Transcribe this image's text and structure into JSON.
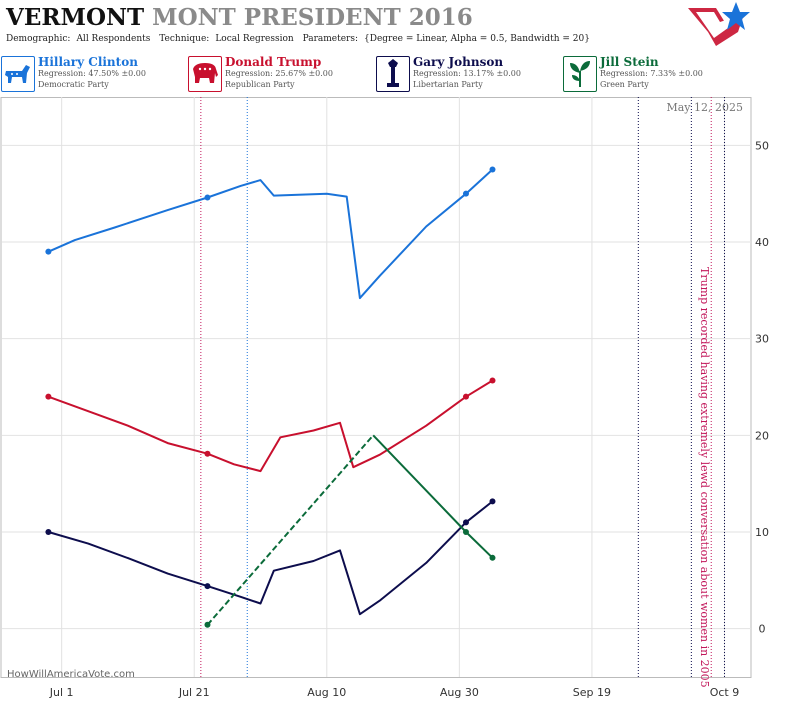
{
  "header": {
    "title_state": "VERMONT",
    "title_rest": "MONT PRESIDENT 2016",
    "demographic_label": "Demographic:",
    "demographic_value": "All Respondents",
    "technique_label": "Technique:",
    "technique_value": "Local Regression",
    "parameters_label": "Parameters:",
    "parameters_value": "{Degree = Linear, Alpha = 0.5, Bandwidth = 20}"
  },
  "candidates": [
    {
      "name": "Hillary Clinton",
      "regression": "Regression: 47.50% ±0.00",
      "party": "Democratic Party",
      "color": "#1a73d9",
      "icon": "donkey-icon"
    },
    {
      "name": "Donald Trump",
      "regression": "Regression: 25.67% ±0.00",
      "party": "Republican Party",
      "color": "#c8102e",
      "icon": "elephant-icon"
    },
    {
      "name": "Gary Johnson",
      "regression": "Regression: 13.17% ±0.00",
      "party": "Libertarian Party",
      "color": "#0d0d4d",
      "icon": "torch-icon"
    },
    {
      "name": "Jill Stein",
      "regression": "Regression: 7.33% ±0.00",
      "party": "Green Party",
      "color": "#0b6b3a",
      "icon": "leaf-icon"
    }
  ],
  "chart": {
    "date_label": "May 12, 2025",
    "watermark": "HowWillAmericaVote.com",
    "annotation": "Trump recorded having extremely lewd conversation about women in 2005"
  },
  "chart_data": {
    "type": "line",
    "x_ticks": [
      "Jul 1",
      "Jul 21",
      "Aug 10",
      "Aug 30",
      "Sep 19",
      "Oct 9"
    ],
    "y_ticks": [
      0,
      10,
      20,
      30,
      40,
      50
    ],
    "ylim": [
      -5,
      55
    ],
    "xlim": [
      "2016-06-22",
      "2016-10-13"
    ],
    "grid": true,
    "series": [
      {
        "name": "Hillary Clinton",
        "color": "#1a73d9",
        "dashed": false,
        "points": [
          [
            "2016-06-29",
            39.0
          ],
          [
            "2016-07-03",
            40.2
          ],
          [
            "2016-07-09",
            41.5
          ],
          [
            "2016-07-17",
            43.3
          ],
          [
            "2016-07-23",
            44.6
          ],
          [
            "2016-07-28",
            45.8
          ],
          [
            "2016-07-31",
            46.4
          ],
          [
            "2016-08-02",
            44.8
          ],
          [
            "2016-08-10",
            45.0
          ],
          [
            "2016-08-13",
            44.7
          ],
          [
            "2016-08-15",
            34.2
          ],
          [
            "2016-08-18",
            36.5
          ],
          [
            "2016-08-25",
            41.6
          ],
          [
            "2016-08-31",
            45.0
          ],
          [
            "2016-09-04",
            47.5
          ]
        ],
        "markers": [
          [
            "2016-06-29",
            39.0
          ],
          [
            "2016-07-23",
            44.6
          ],
          [
            "2016-08-31",
            45.0
          ],
          [
            "2016-09-04",
            47.5
          ]
        ]
      },
      {
        "name": "Donald Trump",
        "color": "#c8102e",
        "dashed": false,
        "points": [
          [
            "2016-06-29",
            24.0
          ],
          [
            "2016-07-05",
            22.5
          ],
          [
            "2016-07-11",
            21.0
          ],
          [
            "2016-07-17",
            19.2
          ],
          [
            "2016-07-23",
            18.1
          ],
          [
            "2016-07-27",
            17.0
          ],
          [
            "2016-07-31",
            16.3
          ],
          [
            "2016-08-03",
            19.8
          ],
          [
            "2016-08-08",
            20.5
          ],
          [
            "2016-08-12",
            21.3
          ],
          [
            "2016-08-14",
            16.7
          ],
          [
            "2016-08-18",
            18.0
          ],
          [
            "2016-08-25",
            21.0
          ],
          [
            "2016-08-31",
            24.0
          ],
          [
            "2016-09-04",
            25.67
          ]
        ],
        "markers": [
          [
            "2016-06-29",
            24.0
          ],
          [
            "2016-07-23",
            18.1
          ],
          [
            "2016-08-31",
            24.0
          ],
          [
            "2016-09-04",
            25.67
          ]
        ]
      },
      {
        "name": "Gary Johnson",
        "color": "#0d0d4d",
        "dashed": false,
        "points": [
          [
            "2016-06-29",
            10.0
          ],
          [
            "2016-07-05",
            8.8
          ],
          [
            "2016-07-11",
            7.3
          ],
          [
            "2016-07-17",
            5.7
          ],
          [
            "2016-07-23",
            4.4
          ],
          [
            "2016-07-28",
            3.3
          ],
          [
            "2016-07-31",
            2.6
          ],
          [
            "2016-08-02",
            6.0
          ],
          [
            "2016-08-08",
            7.0
          ],
          [
            "2016-08-12",
            8.1
          ],
          [
            "2016-08-15",
            1.5
          ],
          [
            "2016-08-18",
            2.9
          ],
          [
            "2016-08-25",
            6.8
          ],
          [
            "2016-08-31",
            11.0
          ],
          [
            "2016-09-04",
            13.17
          ]
        ],
        "markers": [
          [
            "2016-06-29",
            10.0
          ],
          [
            "2016-07-23",
            4.4
          ],
          [
            "2016-08-31",
            11.0
          ],
          [
            "2016-09-04",
            13.17
          ]
        ]
      },
      {
        "name": "Jill Stein",
        "color": "#0b6b3a",
        "dashed": true,
        "points": [
          [
            "2016-07-23",
            0.4
          ],
          [
            "2016-08-17",
            20.0
          ]
        ],
        "markers": [
          [
            "2016-07-23",
            0.4
          ]
        ]
      },
      {
        "name": "Jill Stein",
        "color": "#0b6b3a",
        "dashed": false,
        "points": [
          [
            "2016-08-17",
            20.0
          ],
          [
            "2016-08-31",
            10.0
          ],
          [
            "2016-09-04",
            7.33
          ]
        ],
        "markers": [
          [
            "2016-08-31",
            10.0
          ],
          [
            "2016-09-04",
            7.33
          ]
        ]
      }
    ],
    "event_lines": [
      {
        "date": "2016-07-22",
        "color": "#c2185b"
      },
      {
        "date": "2016-07-29",
        "color": "#1a73d9"
      },
      {
        "date": "2016-09-26",
        "color": "#0d0d4d"
      },
      {
        "date": "2016-10-04",
        "color": "#0d0d4d"
      },
      {
        "date": "2016-10-07",
        "color": "#c2185b"
      },
      {
        "date": "2016-10-09",
        "color": "#0d0d4d"
      }
    ]
  }
}
